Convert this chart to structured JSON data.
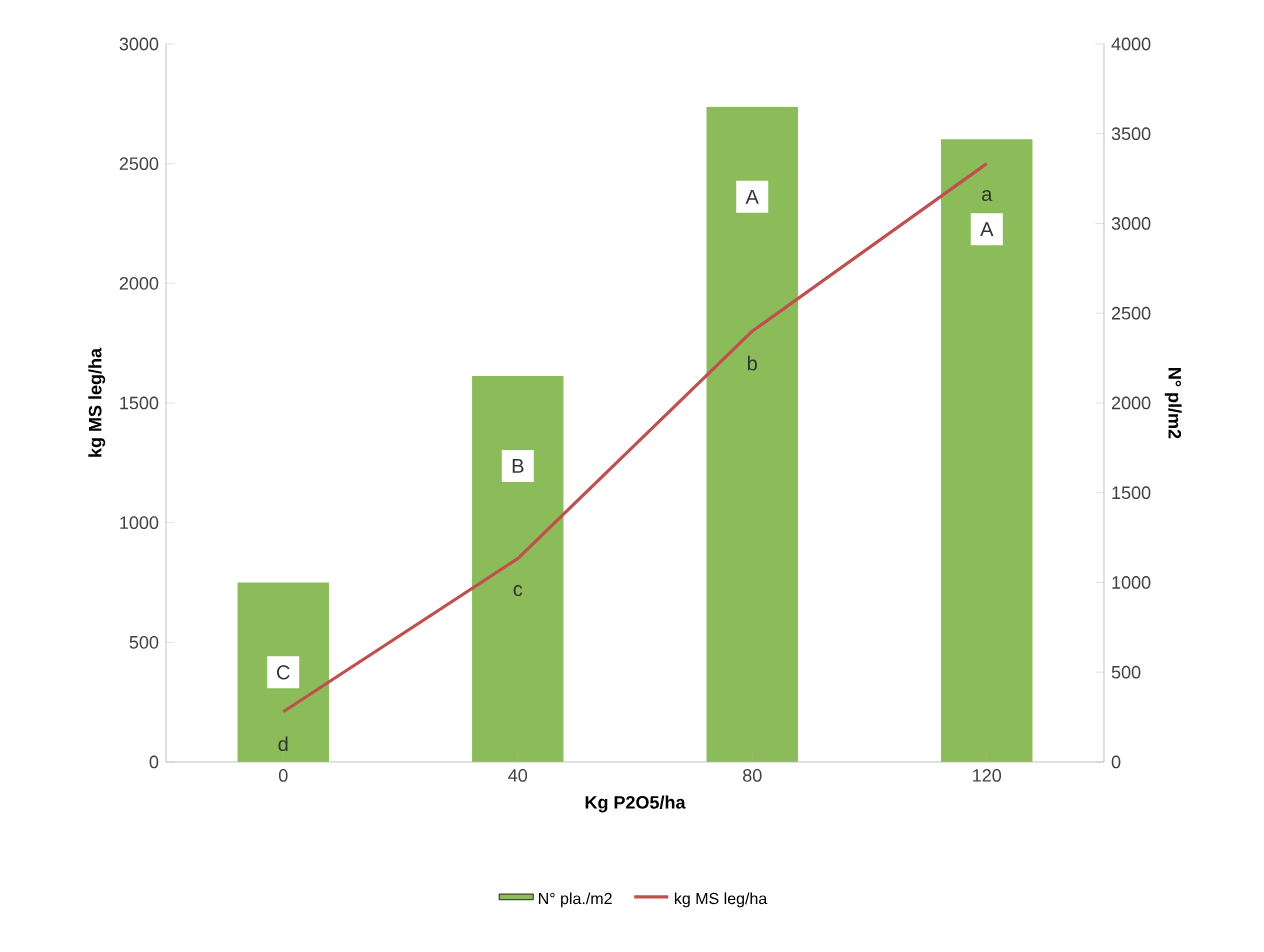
{
  "chart_data": {
    "type": "bar",
    "xlabel": "Kg P2O5/ha",
    "ylabel": "kg MS leg/ha",
    "y2label": "N° pl/m2",
    "categories": [
      "0",
      "40",
      "80",
      "120"
    ],
    "series": [
      {
        "name": "N° pla./m2",
        "axis": "y2",
        "color": "#8cbb5a",
        "values": [
          1000,
          2150,
          3650,
          3470
        ]
      },
      {
        "name": "kg MS leg/ha",
        "type": "line",
        "color": "#c0504d",
        "values": [
          210,
          850,
          1800,
          2500
        ]
      }
    ],
    "ylim": [
      0,
      3000
    ],
    "yticks": [
      0,
      500,
      1000,
      1500,
      2000,
      2500,
      3000
    ],
    "y2lim": [
      0,
      4000
    ],
    "y2ticks": [
      0,
      500,
      1000,
      1500,
      2000,
      2500,
      3000,
      3500,
      4000
    ],
    "annotations": [
      "C",
      "B",
      "A",
      "A",
      "d",
      "c",
      "b",
      "a"
    ],
    "grid": false,
    "legend": "bottom",
    "marker": "none"
  }
}
